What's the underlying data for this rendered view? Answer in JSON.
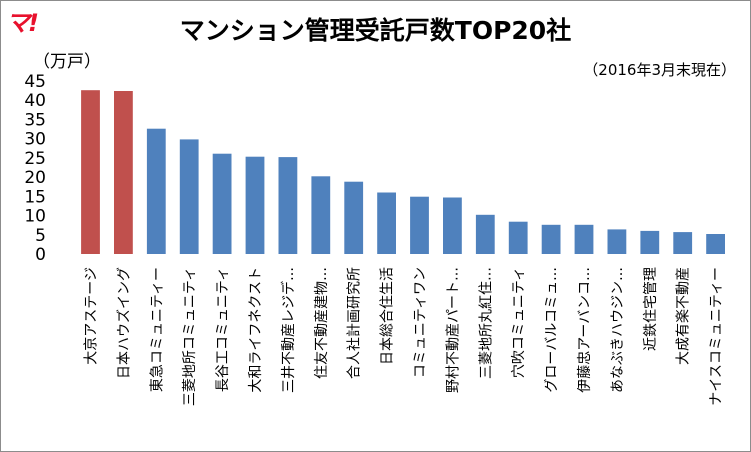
{
  "logo": "マ!",
  "chart_data": {
    "type": "bar",
    "title": "マンション管理受託戸数TOP20社",
    "ylabel": "（万戸）",
    "note": "（2016年3月末現在）",
    "ylim": [
      0,
      45
    ],
    "yticks": [
      0,
      5,
      10,
      15,
      20,
      25,
      30,
      35,
      40,
      45
    ],
    "grid": false,
    "categories": [
      "大京アステージ",
      "日本ハウズイング",
      "東急コミュニティー",
      "三菱地所コミュニティ",
      "長谷工コミュニティ",
      "大和ライフネクスト",
      "三井不動産レジデ…",
      "住友不動産建物…",
      "合人社計画研究所",
      "日本総合住生活",
      "コミュニティワン",
      "野村不動産パート…",
      "三菱地所丸紅住…",
      "穴吹コミュニティ",
      "グローバルコミュ…",
      "伊藤忠アーバンコ…",
      "あなぶきハウジン…",
      "近鉄住宅管理",
      "大成有楽不動産",
      "ナイスコミュニティー"
    ],
    "values": [
      42.6,
      42.4,
      32.6,
      29.8,
      26.1,
      25.3,
      25.2,
      20.2,
      18.8,
      16.0,
      14.9,
      14.7,
      10.2,
      8.4,
      7.6,
      7.6,
      6.4,
      6.0,
      5.7,
      5.2
    ],
    "colors": [
      "#c0504d",
      "#c0504d",
      "#4f81bd",
      "#4f81bd",
      "#4f81bd",
      "#4f81bd",
      "#4f81bd",
      "#4f81bd",
      "#4f81bd",
      "#4f81bd",
      "#4f81bd",
      "#4f81bd",
      "#4f81bd",
      "#4f81bd",
      "#4f81bd",
      "#4f81bd",
      "#4f81bd",
      "#4f81bd",
      "#4f81bd",
      "#4f81bd"
    ]
  }
}
